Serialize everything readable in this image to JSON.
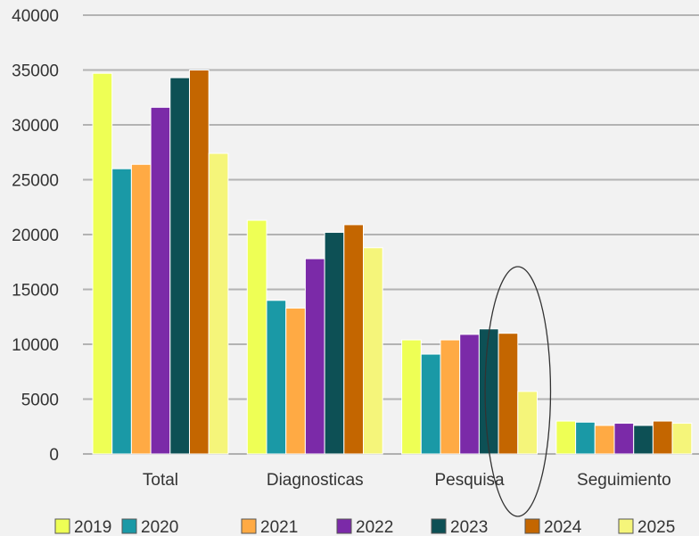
{
  "chart_data": {
    "type": "bar",
    "categories": [
      "Total",
      "Diagnosticas",
      "Pesquisa",
      "Seguimiento"
    ],
    "series": [
      {
        "name": "2019",
        "color": "#eeff55",
        "values": [
          34700,
          21300,
          10400,
          3000
        ]
      },
      {
        "name": "2020",
        "color": "#1a99a6",
        "values": [
          26000,
          14000,
          9100,
          2900
        ]
      },
      {
        "name": "2021",
        "color": "#ffaa44",
        "values": [
          26400,
          13300,
          10400,
          2600
        ]
      },
      {
        "name": "2022",
        "color": "#7b2aa8",
        "values": [
          31600,
          17800,
          10900,
          2800
        ]
      },
      {
        "name": "2023",
        "color": "#0d5055",
        "values": [
          34300,
          20200,
          11400,
          2600
        ]
      },
      {
        "name": "2024",
        "color": "#c46600",
        "values": [
          35000,
          20900,
          11000,
          3000
        ]
      },
      {
        "name": "2025",
        "color": "#f5f57a",
        "values": [
          27400,
          18800,
          5700,
          2800
        ]
      }
    ],
    "yticks": [
      "0",
      "5000",
      "10000",
      "15000",
      "20000",
      "25000",
      "30000",
      "35000",
      "40000"
    ],
    "ylim": [
      0,
      40000
    ],
    "grid": true,
    "legend": "bottom",
    "annotation": {
      "type": "ellipse",
      "category": "Pesquisa",
      "series": [
        "2024",
        "2025"
      ]
    }
  }
}
